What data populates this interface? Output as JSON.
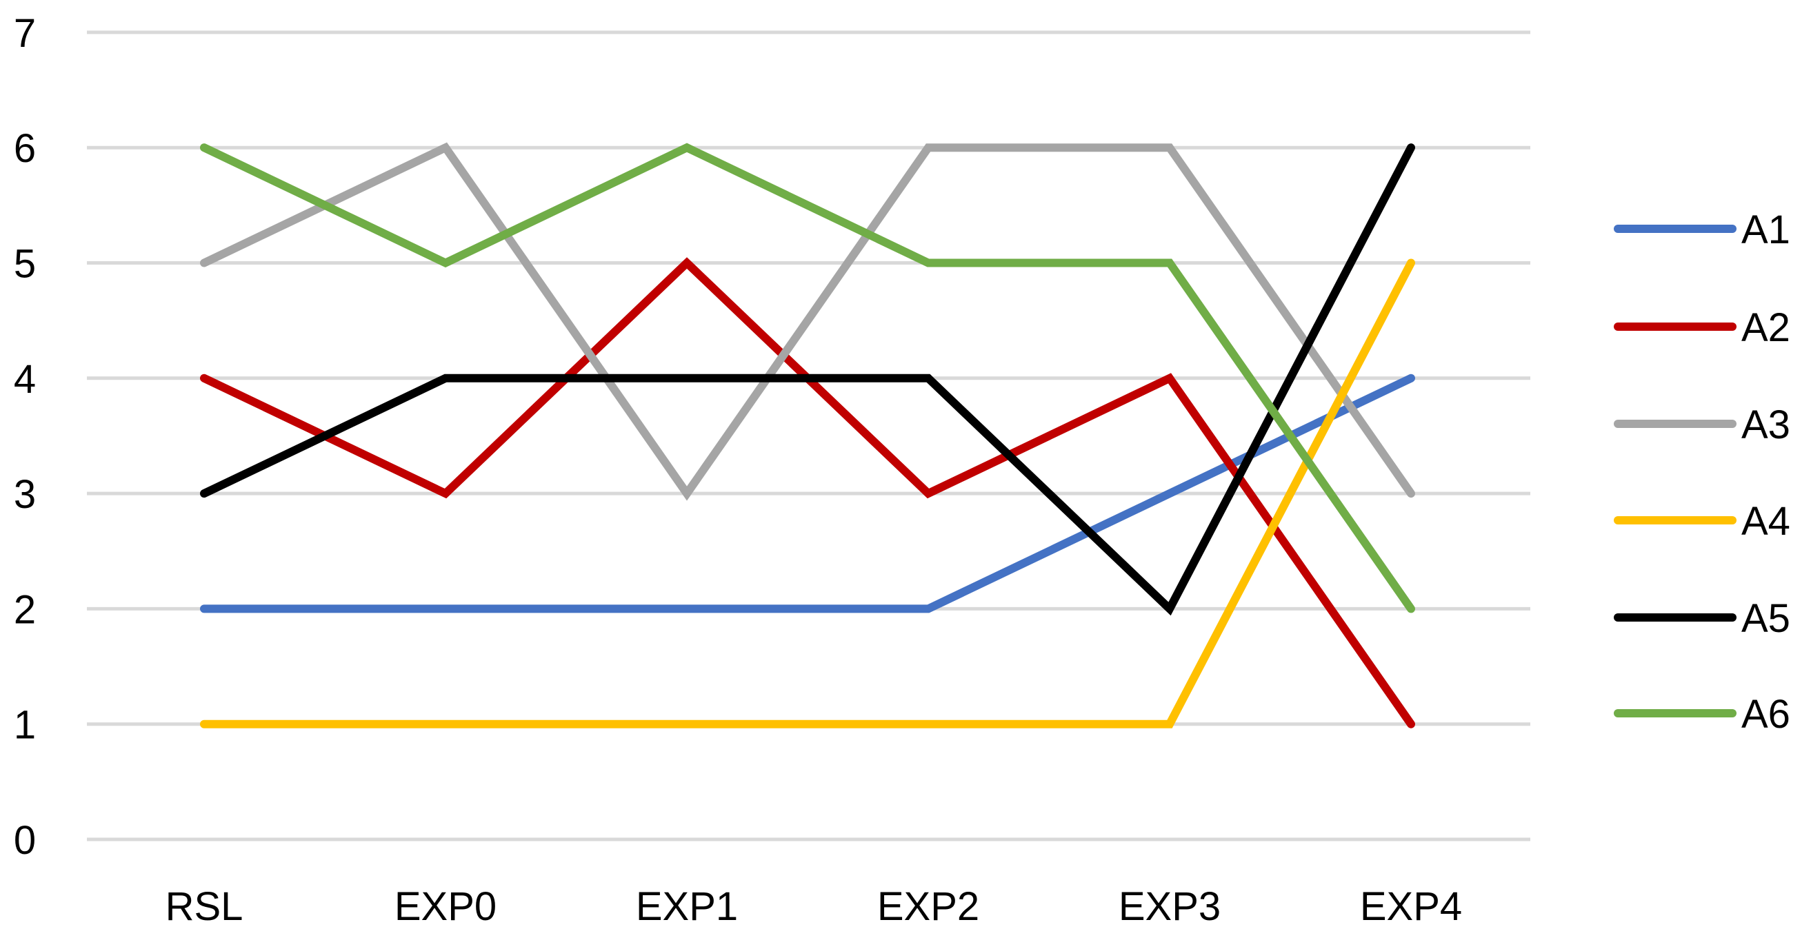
{
  "chart_data": {
    "type": "line",
    "title": "",
    "xlabel": "",
    "ylabel": "",
    "categories": [
      "RSL",
      "EXP0",
      "EXP1",
      "EXP2",
      "EXP3",
      "EXP4"
    ],
    "ylim": [
      0,
      7
    ],
    "yticks": [
      "0",
      "1",
      "2",
      "3",
      "4",
      "5",
      "6",
      "7"
    ],
    "grid": true,
    "legend_position": "right",
    "series": [
      {
        "name": "A1",
        "color": "#4472C4",
        "values": [
          2,
          2,
          2,
          2,
          3,
          4
        ]
      },
      {
        "name": "A2",
        "color": "#C00000",
        "values": [
          4,
          3,
          5,
          3,
          4,
          1
        ]
      },
      {
        "name": "A3",
        "color": "#A5A5A5",
        "values": [
          5,
          6,
          3,
          6,
          6,
          3
        ]
      },
      {
        "name": "A4",
        "color": "#FFC000",
        "values": [
          1,
          1,
          1,
          1,
          1,
          5
        ]
      },
      {
        "name": "A5",
        "color": "#000000",
        "values": [
          3,
          4,
          4,
          4,
          2,
          6
        ]
      },
      {
        "name": "A6",
        "color": "#70AD47",
        "values": [
          6,
          5,
          6,
          5,
          5,
          2
        ]
      }
    ]
  }
}
